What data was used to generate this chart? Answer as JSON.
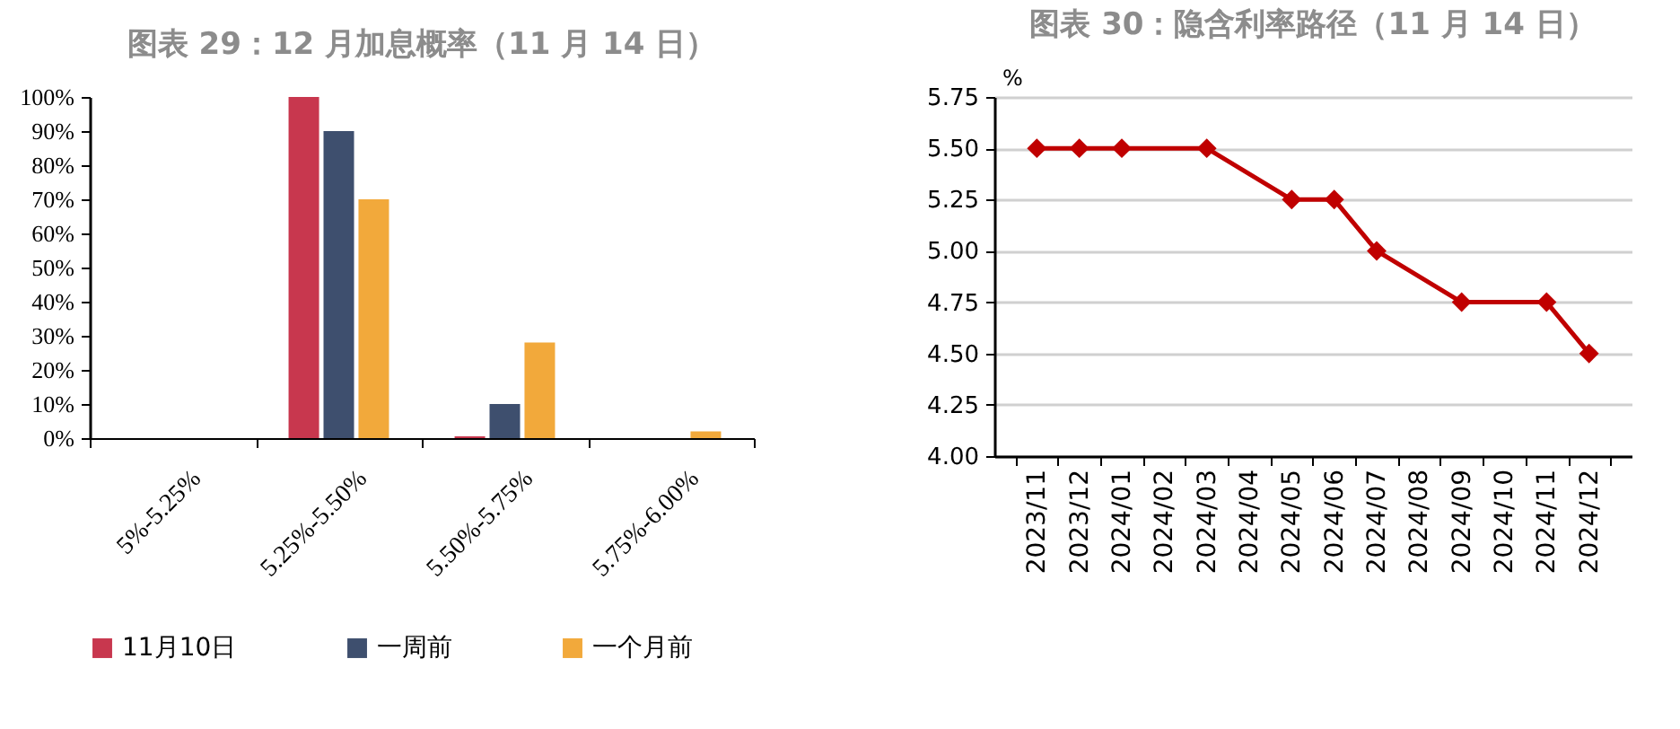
{
  "chart_data": [
    {
      "type": "bar",
      "title": "图表 29：12 月加息概率（11 月 14 日）",
      "categories": [
        "5%-5.25%",
        "5.25%-5.50%",
        "5.50%-5.75%",
        "5.75%-6.00%"
      ],
      "series": [
        {
          "name": "11月10日",
          "color": "#c8374e",
          "values": [
            0,
            100,
            0.5,
            0
          ]
        },
        {
          "name": "一周前",
          "color": "#3e4f6e",
          "values": [
            0,
            90,
            10,
            0
          ]
        },
        {
          "name": "一个月前",
          "color": "#f2a93b",
          "values": [
            0,
            70,
            28,
            2
          ]
        }
      ],
      "ylim": [
        0,
        100
      ],
      "yticks": [
        {
          "value": 0,
          "label": "0%"
        },
        {
          "value": 10,
          "label": "10%"
        },
        {
          "value": 20,
          "label": "20%"
        },
        {
          "value": 30,
          "label": "30%"
        },
        {
          "value": 40,
          "label": "40%"
        },
        {
          "value": 50,
          "label": "50%"
        },
        {
          "value": 60,
          "label": "60%"
        },
        {
          "value": 70,
          "label": "70%"
        },
        {
          "value": 80,
          "label": "80%"
        },
        {
          "value": 90,
          "label": "90%"
        },
        {
          "value": 100,
          "label": "100%"
        }
      ],
      "legend": "bottom",
      "grid": false
    },
    {
      "type": "line",
      "title": "图表 30：隐含利率路径（11 月 14 日）",
      "ylabel": "%",
      "categories": [
        "2023/11",
        "2023/12",
        "2024/01",
        "2024/02",
        "2024/03",
        "2024/04",
        "2024/05",
        "2024/06",
        "2024/07",
        "2024/08",
        "2024/09",
        "2024/10",
        "2024/11",
        "2024/12"
      ],
      "series": [
        {
          "color": "#c00000",
          "values": [
            5.5,
            5.5,
            5.5,
            null,
            5.5,
            null,
            5.25,
            5.25,
            5.0,
            null,
            4.75,
            null,
            4.75,
            4.5
          ]
        }
      ],
      "ylim": [
        4.0,
        5.75
      ],
      "yticks": [
        {
          "value": 4,
          "label": "4.00"
        },
        {
          "value": 4.25,
          "label": "4.25"
        },
        {
          "value": 4.5,
          "label": "4.50"
        },
        {
          "value": 4.75,
          "label": "4.75"
        },
        {
          "value": 5,
          "label": "5.00"
        },
        {
          "value": 5.25,
          "label": "5.25"
        },
        {
          "value": 5.5,
          "label": "5.50"
        },
        {
          "value": 5.75,
          "label": "5.75"
        }
      ],
      "marker": "diamond",
      "grid": "y",
      "legend": false
    }
  ]
}
